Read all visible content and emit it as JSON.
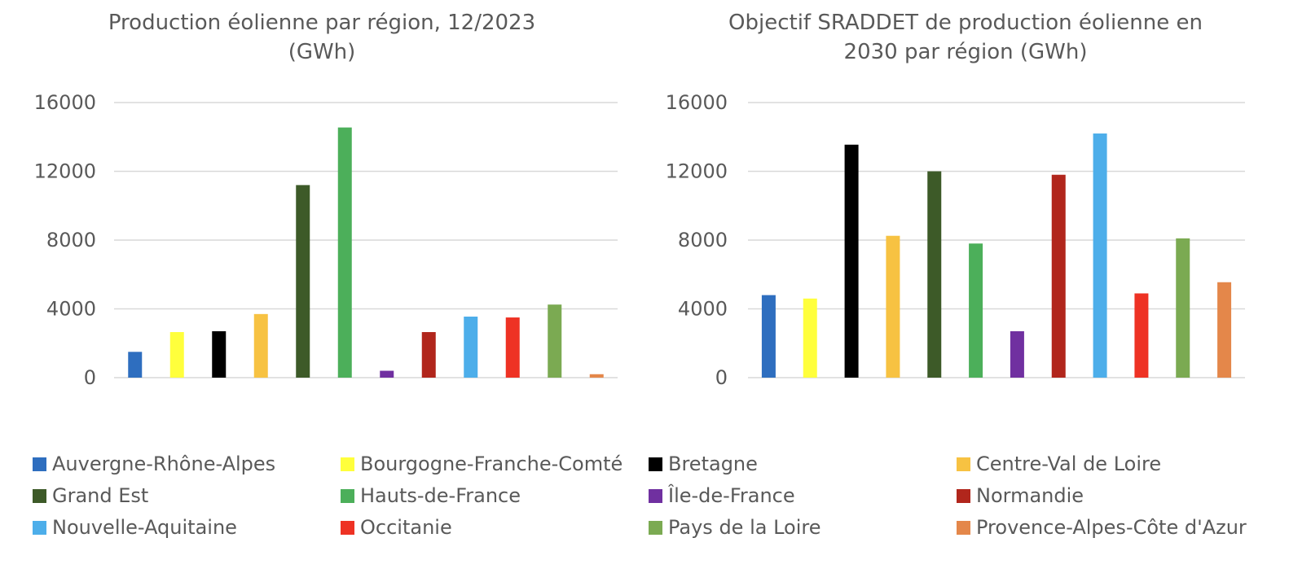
{
  "chart_data": [
    {
      "type": "bar",
      "title_lines": [
        "Production éolienne par région, 12/2023",
        "(GWh)"
      ],
      "categories": [
        "Auvergne-Rhône-Alpes",
        "Bourgogne-Franche-Comté",
        "Bretagne",
        "Centre-Val de Loire",
        "Grand Est",
        "Hauts-de-France",
        "Île-de-France",
        "Normandie",
        "Nouvelle-Aquitaine",
        "Occitanie",
        "Pays de la Loire",
        "Provence-Alpes-Côte d'Azur"
      ],
      "values": [
        1500,
        2650,
        2700,
        3700,
        11200,
        14550,
        400,
        2650,
        3550,
        3500,
        4250,
        200
      ],
      "ylim": [
        0,
        16000
      ],
      "yticks": [
        "0",
        "4000",
        "8000",
        "12000",
        "16000"
      ],
      "grid": true,
      "legend": "bottom"
    },
    {
      "type": "bar",
      "title_lines": [
        "Objectif SRADDET de production éolienne en",
        "2030 par région (GWh)"
      ],
      "categories": [
        "Auvergne-Rhône-Alpes",
        "Bourgogne-Franche-Comté",
        "Bretagne",
        "Centre-Val de Loire",
        "Grand Est",
        "Hauts-de-France",
        "Île-de-France",
        "Normandie",
        "Nouvelle-Aquitaine",
        "Occitanie",
        "Pays de la Loire",
        "Provence-Alpes-Côte d'Azur"
      ],
      "values": [
        4800,
        4600,
        13550,
        8250,
        12000,
        7800,
        2700,
        11800,
        14200,
        4900,
        8100,
        5550
      ],
      "ylim": [
        0,
        16000
      ],
      "yticks": [
        "0",
        "4000",
        "8000",
        "12000",
        "16000"
      ],
      "grid": true,
      "legend": "bottom"
    }
  ],
  "legend": {
    "items": [
      {
        "label": "Auvergne-Rhône-Alpes",
        "color": "#2E6EBF"
      },
      {
        "label": "Bourgogne-Franche-Comté",
        "color": "#FFFF3C"
      },
      {
        "label": "Bretagne",
        "color": "#000000"
      },
      {
        "label": "Centre-Val de Loire",
        "color": "#F7C242"
      },
      {
        "label": "Grand Est",
        "color": "#3D5A28"
      },
      {
        "label": "Hauts-de-France",
        "color": "#4CAF5A"
      },
      {
        "label": "Île-de-France",
        "color": "#7030A0"
      },
      {
        "label": "Normandie",
        "color": "#B1261C"
      },
      {
        "label": "Nouvelle-Aquitaine",
        "color": "#4DAEEA"
      },
      {
        "label": "Occitanie",
        "color": "#EE3224"
      },
      {
        "label": "Pays de la Loire",
        "color": "#7BAA52"
      },
      {
        "label": "Provence-Alpes-Côte d'Azur",
        "color": "#E4874A"
      }
    ]
  },
  "colors": {
    "grid": "#D9D9D9",
    "text": "#595959"
  }
}
